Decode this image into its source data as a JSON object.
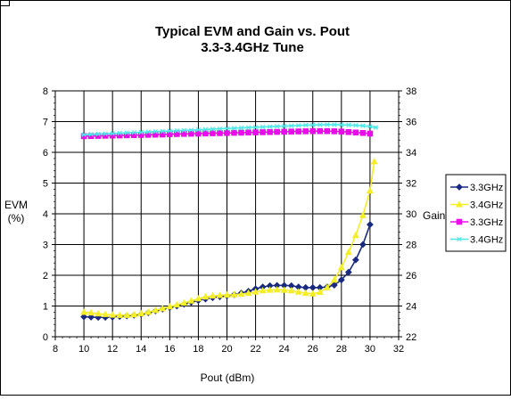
{
  "chart_data": {
    "type": "line",
    "title_line1": "Typical EVM and Gain vs. Pout",
    "title_line2": "3.3-3.4GHz Tune",
    "xlabel": "Pout (dBm)",
    "ylabel_left_line1": "EVM",
    "ylabel_left_line2": "(%)",
    "ylabel_right": "Gain",
    "xlim": [
      8,
      32
    ],
    "ylim_left": [
      0,
      8
    ],
    "ylim_right": [
      22,
      38
    ],
    "x_ticks": [
      "8",
      "10",
      "12",
      "14",
      "16",
      "18",
      "20",
      "22",
      "24",
      "26",
      "28",
      "30",
      "32"
    ],
    "y_left_ticks": [
      "0",
      "1",
      "2",
      "3",
      "4",
      "5",
      "6",
      "7",
      "8"
    ],
    "y_right_ticks": [
      "22",
      "24",
      "26",
      "28",
      "30",
      "32",
      "34",
      "36",
      "38"
    ],
    "grid": true,
    "legend_position": "right",
    "series": [
      {
        "name": "3.3GHz",
        "axis": "left",
        "marker": "diamond",
        "color": "#1a2a80",
        "x": [
          10.0,
          10.5,
          11.0,
          11.5,
          12.0,
          12.5,
          13.0,
          13.5,
          14.0,
          14.5,
          15.0,
          15.5,
          16.0,
          16.5,
          17.0,
          17.5,
          18.0,
          18.5,
          19.0,
          19.5,
          20.0,
          20.5,
          21.0,
          21.5,
          22.0,
          22.5,
          23.0,
          23.5,
          24.0,
          24.5,
          25.0,
          25.5,
          26.0,
          26.5,
          27.0,
          27.5,
          28.0,
          28.5,
          29.0,
          29.5,
          30.0
        ],
        "y": [
          0.65,
          0.64,
          0.63,
          0.63,
          0.64,
          0.66,
          0.68,
          0.7,
          0.73,
          0.78,
          0.84,
          0.9,
          0.95,
          1.0,
          1.06,
          1.12,
          1.18,
          1.23,
          1.27,
          1.3,
          1.33,
          1.37,
          1.42,
          1.48,
          1.56,
          1.62,
          1.66,
          1.67,
          1.67,
          1.66,
          1.62,
          1.6,
          1.6,
          1.6,
          1.62,
          1.68,
          1.85,
          2.1,
          2.5,
          3.0,
          3.65
        ]
      },
      {
        "name": "3.4GHz",
        "axis": "left",
        "marker": "triangle",
        "color": "#f4ee28",
        "x": [
          10.0,
          10.5,
          11.0,
          11.5,
          12.0,
          12.5,
          13.0,
          13.5,
          14.0,
          14.5,
          15.0,
          15.5,
          16.0,
          16.5,
          17.0,
          17.5,
          18.0,
          18.5,
          19.0,
          19.5,
          20.0,
          20.5,
          21.0,
          21.5,
          22.0,
          22.5,
          23.0,
          23.5,
          24.0,
          24.5,
          25.0,
          25.5,
          26.0,
          26.5,
          27.0,
          27.5,
          28.0,
          28.5,
          29.0,
          29.5,
          30.0,
          30.3
        ],
        "y": [
          0.8,
          0.78,
          0.75,
          0.73,
          0.71,
          0.7,
          0.7,
          0.72,
          0.75,
          0.8,
          0.86,
          0.92,
          0.98,
          1.04,
          1.1,
          1.17,
          1.24,
          1.3,
          1.33,
          1.35,
          1.36,
          1.37,
          1.39,
          1.42,
          1.46,
          1.5,
          1.52,
          1.53,
          1.52,
          1.5,
          1.46,
          1.42,
          1.4,
          1.45,
          1.6,
          1.85,
          2.25,
          2.75,
          3.3,
          3.95,
          4.75,
          5.7
        ]
      },
      {
        "name": "3.3GHz",
        "axis": "right",
        "marker": "square",
        "color": "#e80ee8",
        "x": [
          10.0,
          10.5,
          11.0,
          11.5,
          12.0,
          12.5,
          13.0,
          13.5,
          14.0,
          14.5,
          15.0,
          15.5,
          16.0,
          16.5,
          17.0,
          17.5,
          18.0,
          18.5,
          19.0,
          19.5,
          20.0,
          20.5,
          21.0,
          21.5,
          22.0,
          22.5,
          23.0,
          23.5,
          24.0,
          24.5,
          25.0,
          25.5,
          26.0,
          26.5,
          27.0,
          27.5,
          28.0,
          28.5,
          29.0,
          29.5,
          30.0
        ],
        "y": [
          35.05,
          35.06,
          35.07,
          35.08,
          35.09,
          35.1,
          35.11,
          35.12,
          35.13,
          35.14,
          35.15,
          35.16,
          35.18,
          35.19,
          35.2,
          35.21,
          35.22,
          35.23,
          35.24,
          35.25,
          35.26,
          35.27,
          35.28,
          35.29,
          35.3,
          35.31,
          35.32,
          35.33,
          35.34,
          35.35,
          35.36,
          35.37,
          35.38,
          35.38,
          35.38,
          35.37,
          35.35,
          35.32,
          35.29,
          35.26,
          35.22
        ]
      },
      {
        "name": "3.4GHz",
        "axis": "right",
        "marker": "star",
        "color": "#4de8e8",
        "x": [
          10.0,
          10.5,
          11.0,
          11.5,
          12.0,
          12.5,
          13.0,
          13.5,
          14.0,
          14.5,
          15.0,
          15.5,
          16.0,
          16.5,
          17.0,
          17.5,
          18.0,
          18.5,
          19.0,
          19.5,
          20.0,
          20.5,
          21.0,
          21.5,
          22.0,
          22.5,
          23.0,
          23.5,
          24.0,
          24.5,
          25.0,
          25.5,
          26.0,
          26.5,
          27.0,
          27.5,
          28.0,
          28.5,
          29.0,
          29.5,
          30.0,
          30.4
        ],
        "y": [
          35.15,
          35.17,
          35.19,
          35.21,
          35.23,
          35.25,
          35.27,
          35.29,
          35.31,
          35.33,
          35.35,
          35.37,
          35.39,
          35.41,
          35.43,
          35.45,
          35.47,
          35.49,
          35.51,
          35.53,
          35.55,
          35.57,
          35.59,
          35.61,
          35.63,
          35.65,
          35.67,
          35.69,
          35.71,
          35.73,
          35.75,
          35.77,
          35.78,
          35.79,
          35.8,
          35.8,
          35.79,
          35.78,
          35.76,
          35.73,
          35.68,
          35.62
        ]
      }
    ]
  }
}
